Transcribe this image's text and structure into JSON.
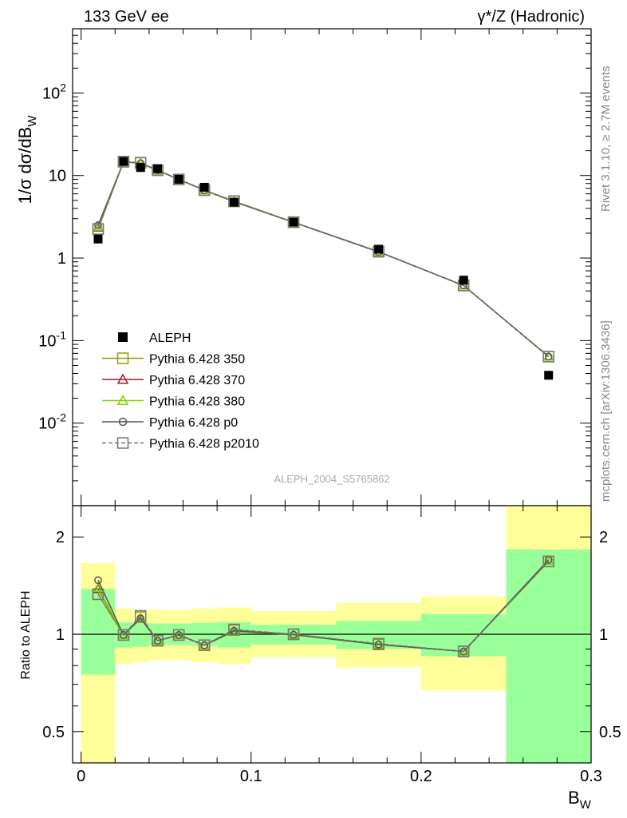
{
  "header": {
    "left": "133 GeV ee",
    "right": "γ*/Z (Hadronic)",
    "side_rivet": "Rivet 3.1.10, ≥ 2.7M events",
    "side_mcplots": "mcplots.cern.ch [arXiv:1306.3436]",
    "analysis_id": "ALEPH_2004_S5765862"
  },
  "chart_data": [
    {
      "type": "line",
      "panel": "main",
      "ylabel": "1/σ dσ/dB_W",
      "yscale": "log",
      "ylim": [
        0.001,
        600
      ],
      "xlim": [
        -0.005,
        0.3
      ],
      "ytick_labels": [
        "10^-2",
        "10^-1",
        "1",
        "10",
        "10^2"
      ],
      "ytick_values": [
        0.01,
        0.1,
        1,
        10,
        100
      ],
      "legend_placement": "lower-left",
      "data": {
        "name": "ALEPH",
        "x": [
          0.01,
          0.025,
          0.035,
          0.045,
          0.0575,
          0.0725,
          0.09,
          0.125,
          0.175,
          0.225,
          0.275
        ],
        "y": [
          1.7,
          14.8,
          12.5,
          12.1,
          9.0,
          7.2,
          4.75,
          2.72,
          1.28,
          0.54,
          0.038
        ]
      },
      "series": [
        {
          "name": "Pythia 6.428 350",
          "color": "#999900",
          "marker": "square",
          "x": [
            0.01,
            0.025,
            0.035,
            0.045,
            0.0575,
            0.0725,
            0.09,
            0.125,
            0.175,
            0.225,
            0.275
          ],
          "y": [
            2.25,
            14.7,
            14.2,
            11.6,
            8.95,
            6.65,
            4.85,
            2.72,
            1.19,
            0.465,
            0.064
          ]
        },
        {
          "name": "Pythia 6.428 370",
          "color": "#9b1c2c",
          "marker": "triangle",
          "x": [
            0.01,
            0.025,
            0.035,
            0.045,
            0.0575,
            0.0725,
            0.09,
            0.125,
            0.175,
            0.225,
            0.275
          ],
          "y": [
            2.35,
            14.7,
            14.0,
            11.6,
            8.95,
            6.65,
            4.8,
            2.71,
            1.19,
            0.465,
            0.064
          ]
        },
        {
          "name": "Pythia 6.428 380",
          "color": "#7fd400",
          "marker": "triangle",
          "x": [
            0.01,
            0.025,
            0.035,
            0.045,
            0.0575,
            0.0725,
            0.09,
            0.125,
            0.175,
            0.225,
            0.275
          ],
          "y": [
            2.4,
            14.7,
            14.0,
            11.6,
            8.95,
            6.65,
            4.8,
            2.71,
            1.19,
            0.465,
            0.064
          ]
        },
        {
          "name": "Pythia 6.428 p0",
          "color": "#555555",
          "marker": "circle",
          "x": [
            0.01,
            0.025,
            0.035,
            0.045,
            0.0575,
            0.0725,
            0.09,
            0.125,
            0.175,
            0.225,
            0.275
          ],
          "y": [
            2.5,
            14.7,
            14.1,
            11.6,
            8.95,
            6.65,
            4.85,
            2.71,
            1.19,
            0.465,
            0.064
          ]
        },
        {
          "name": "Pythia 6.428 p2010",
          "color": "#777777",
          "marker": "square",
          "dashed": true,
          "x": [
            0.01,
            0.025,
            0.035,
            0.045,
            0.0575,
            0.0725,
            0.09,
            0.125,
            0.175,
            0.225,
            0.275
          ],
          "y": [
            2.25,
            14.7,
            14.3,
            11.6,
            8.95,
            6.65,
            4.9,
            2.72,
            1.2,
            0.465,
            0.064
          ]
        }
      ]
    },
    {
      "type": "line",
      "panel": "ratio",
      "ylabel": "Ratio to ALEPH",
      "xlabel": "B_W",
      "yscale": "log",
      "ylim": [
        0.4,
        2.5
      ],
      "xlim": [
        -0.005,
        0.3
      ],
      "ytick_values": [
        0.5,
        1,
        2
      ],
      "ytick_labels": [
        "0.5",
        "1",
        "2"
      ],
      "xtick_values": [
        0,
        0.1,
        0.2,
        0.3
      ],
      "xtick_labels": [
        "0",
        "0.1",
        "0.2",
        "0.3"
      ],
      "bands": [
        {
          "x0": 0.0,
          "x1": 0.02,
          "stat": [
            0.75,
            1.38
          ],
          "total": [
            0.36,
            1.66
          ]
        },
        {
          "x0": 0.02,
          "x1": 0.03,
          "stat": [
            0.91,
            1.09
          ],
          "total": [
            0.81,
            1.2
          ]
        },
        {
          "x0": 0.03,
          "x1": 0.04,
          "stat": [
            0.915,
            1.085
          ],
          "total": [
            0.82,
            1.19
          ]
        },
        {
          "x0": 0.04,
          "x1": 0.05,
          "stat": [
            0.925,
            1.08
          ],
          "total": [
            0.83,
            1.19
          ]
        },
        {
          "x0": 0.05,
          "x1": 0.065,
          "stat": [
            0.925,
            1.08
          ],
          "total": [
            0.83,
            1.19
          ]
        },
        {
          "x0": 0.065,
          "x1": 0.08,
          "stat": [
            0.92,
            1.085
          ],
          "total": [
            0.82,
            1.2
          ]
        },
        {
          "x0": 0.08,
          "x1": 0.1,
          "stat": [
            0.91,
            1.09
          ],
          "total": [
            0.81,
            1.21
          ]
        },
        {
          "x0": 0.1,
          "x1": 0.15,
          "stat": [
            0.93,
            1.07
          ],
          "total": [
            0.85,
            1.18
          ]
        },
        {
          "x0": 0.15,
          "x1": 0.2,
          "stat": [
            0.9,
            1.1
          ],
          "total": [
            0.79,
            1.25
          ]
        },
        {
          "x0": 0.2,
          "x1": 0.25,
          "stat": [
            0.855,
            1.155
          ],
          "total": [
            0.67,
            1.31
          ]
        },
        {
          "x0": 0.25,
          "x1": 0.3,
          "stat": [
            0.4,
            1.83
          ],
          "total": [
            0.4,
            2.5
          ]
        }
      ],
      "series": [
        {
          "name": "Pythia 6.428 350",
          "color": "#999900",
          "marker": "square",
          "x": [
            0.01,
            0.025,
            0.035,
            0.045,
            0.0575,
            0.0725,
            0.09,
            0.125,
            0.175,
            0.225,
            0.275
          ],
          "y": [
            1.33,
            0.995,
            1.13,
            0.955,
            0.995,
            0.925,
            1.03,
            1.0,
            0.93,
            0.885,
            1.68
          ]
        },
        {
          "name": "Pythia 6.428 370",
          "color": "#9b1c2c",
          "marker": "triangle",
          "x": [
            0.01,
            0.025,
            0.035,
            0.045,
            0.0575,
            0.0725,
            0.09,
            0.125,
            0.175,
            0.225,
            0.275
          ],
          "y": [
            1.38,
            0.995,
            1.12,
            0.955,
            0.995,
            0.925,
            1.02,
            0.997,
            0.93,
            0.885,
            1.69
          ]
        },
        {
          "name": "Pythia 6.428 380",
          "color": "#7fd400",
          "marker": "triangle",
          "x": [
            0.01,
            0.025,
            0.035,
            0.045,
            0.0575,
            0.0725,
            0.09,
            0.125,
            0.175,
            0.225,
            0.275
          ],
          "y": [
            1.39,
            0.995,
            1.12,
            0.955,
            0.995,
            0.925,
            1.02,
            0.997,
            0.93,
            0.885,
            1.69
          ]
        },
        {
          "name": "Pythia 6.428 p0",
          "color": "#555555",
          "marker": "circle",
          "x": [
            0.01,
            0.025,
            0.035,
            0.045,
            0.0575,
            0.0725,
            0.09,
            0.125,
            0.175,
            0.225,
            0.275
          ],
          "y": [
            1.47,
            0.995,
            1.12,
            0.955,
            0.995,
            0.925,
            1.025,
            0.997,
            0.93,
            0.885,
            1.7
          ]
        },
        {
          "name": "Pythia 6.428 p2010",
          "color": "#777777",
          "marker": "square",
          "dashed": true,
          "x": [
            0.01,
            0.025,
            0.035,
            0.045,
            0.0575,
            0.0725,
            0.09,
            0.125,
            0.175,
            0.225,
            0.275
          ],
          "y": [
            1.33,
            0.995,
            1.14,
            0.955,
            0.995,
            0.925,
            1.035,
            1.0,
            0.935,
            0.885,
            1.68
          ]
        }
      ]
    }
  ]
}
